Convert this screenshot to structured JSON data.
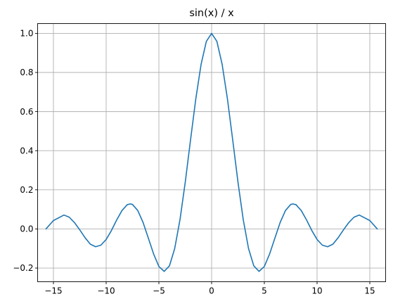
{
  "chart_data": {
    "type": "line",
    "title": "sin(x) / x",
    "xlabel": "",
    "ylabel": "",
    "xlim": [
      -16.5,
      16.5
    ],
    "ylim": [
      -0.27,
      1.05
    ],
    "grid": true,
    "x_ticks": [
      -15,
      -10,
      -5,
      0,
      5,
      10,
      15
    ],
    "x_tick_labels": [
      "−15",
      "−10",
      "−5",
      "0",
      "5",
      "10",
      "15"
    ],
    "y_ticks": [
      -0.2,
      0.0,
      0.2,
      0.4,
      0.6,
      0.8,
      1.0
    ],
    "y_tick_labels": [
      "−0.2",
      "0.0",
      "0.2",
      "0.4",
      "0.6",
      "0.8",
      "1.0"
    ],
    "series": [
      {
        "color": "#1f77b4",
        "x": [
          -15.708,
          -15.0,
          -14.0,
          -13.5,
          -13.0,
          -12.5,
          -12.0,
          -11.5,
          -11.0,
          -10.5,
          -10.0,
          -9.5,
          -9.0,
          -8.5,
          -8.0,
          -7.7,
          -7.5,
          -7.0,
          -6.5,
          -6.0,
          -5.5,
          -5.0,
          -4.5,
          -4.0,
          -3.5,
          -3.0,
          -2.5,
          -2.0,
          -1.5,
          -1.0,
          -0.5,
          0.0,
          0.5,
          1.0,
          1.5,
          2.0,
          2.5,
          3.0,
          3.5,
          4.0,
          4.5,
          5.0,
          5.5,
          6.0,
          6.5,
          7.0,
          7.5,
          7.7,
          8.0,
          8.5,
          9.0,
          9.5,
          10.0,
          10.5,
          11.0,
          11.5,
          12.0,
          12.5,
          13.0,
          13.5,
          14.0,
          15.0,
          15.708
        ],
        "y": [
          0.0,
          0.043,
          0.071,
          0.06,
          0.032,
          -0.005,
          -0.045,
          -0.078,
          -0.091,
          -0.083,
          -0.054,
          -0.008,
          0.046,
          0.094,
          0.124,
          0.128,
          0.125,
          0.094,
          0.033,
          -0.047,
          -0.128,
          -0.192,
          -0.217,
          -0.189,
          -0.1,
          0.047,
          0.239,
          0.455,
          0.665,
          0.841,
          0.959,
          1.0,
          0.959,
          0.841,
          0.665,
          0.455,
          0.239,
          0.047,
          -0.1,
          -0.189,
          -0.217,
          -0.192,
          -0.128,
          -0.047,
          0.033,
          0.094,
          0.125,
          0.128,
          0.124,
          0.094,
          0.046,
          -0.008,
          -0.054,
          -0.083,
          -0.091,
          -0.078,
          -0.045,
          -0.005,
          0.032,
          0.06,
          0.071,
          0.043,
          0.0
        ]
      }
    ]
  }
}
